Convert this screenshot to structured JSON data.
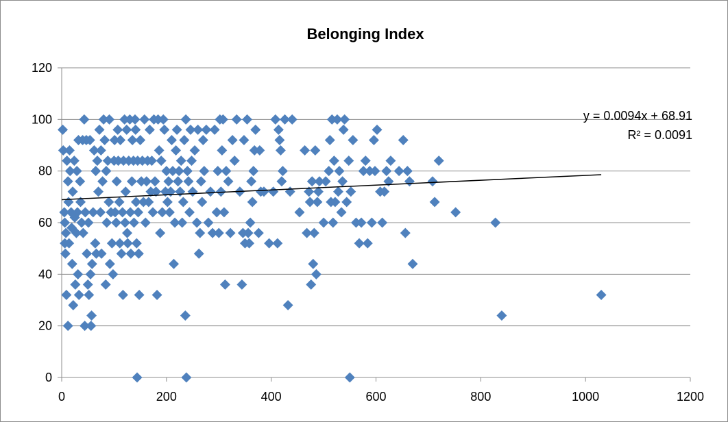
{
  "chart_data": {
    "type": "scatter",
    "title": "Belonging Index",
    "xlabel": "",
    "ylabel": "",
    "xlim": [
      0,
      1200
    ],
    "ylim": [
      0,
      120
    ],
    "x_ticks": [
      "0",
      "200",
      "400",
      "600",
      "800",
      "1000",
      "1200"
    ],
    "y_ticks": [
      "0",
      "20",
      "40",
      "60",
      "80",
      "100",
      "120"
    ],
    "grid": "horizontal",
    "legend": "none",
    "marker": "diamond",
    "marker_color": "#4F81BD",
    "trendline": {
      "type": "linear",
      "slope": 0.0094,
      "intercept": 68.91,
      "x_range": [
        0,
        1030
      ],
      "color": "#000000",
      "equation": "y = 0.0094x + 68.91",
      "r_squared": "R² = 0.0091"
    },
    "points": [
      [
        2,
        96
      ],
      [
        3,
        88
      ],
      [
        5,
        64
      ],
      [
        6,
        60
      ],
      [
        6,
        52
      ],
      [
        7,
        48
      ],
      [
        8,
        56
      ],
      [
        9,
        32
      ],
      [
        10,
        84
      ],
      [
        12,
        76
      ],
      [
        12,
        20
      ],
      [
        13,
        68
      ],
      [
        14,
        52
      ],
      [
        15,
        88
      ],
      [
        16,
        80
      ],
      [
        18,
        64
      ],
      [
        19,
        58
      ],
      [
        20,
        44
      ],
      [
        21,
        72
      ],
      [
        22,
        28
      ],
      [
        24,
        84
      ],
      [
        25,
        62
      ],
      [
        26,
        36
      ],
      [
        28,
        56
      ],
      [
        29,
        80
      ],
      [
        30,
        64
      ],
      [
        31,
        40
      ],
      [
        32,
        92
      ],
      [
        33,
        32
      ],
      [
        35,
        76
      ],
      [
        36,
        68
      ],
      [
        38,
        60
      ],
      [
        40,
        92
      ],
      [
        41,
        56
      ],
      [
        43,
        100
      ],
      [
        44,
        20
      ],
      [
        45,
        64
      ],
      [
        47,
        92
      ],
      [
        48,
        48
      ],
      [
        50,
        36
      ],
      [
        51,
        60
      ],
      [
        52,
        32
      ],
      [
        54,
        92
      ],
      [
        55,
        40
      ],
      [
        56,
        20
      ],
      [
        57,
        24
      ],
      [
        58,
        44
      ],
      [
        60,
        64
      ],
      [
        62,
        88
      ],
      [
        64,
        52
      ],
      [
        65,
        80
      ],
      [
        66,
        48
      ],
      [
        68,
        84
      ],
      [
        70,
        72
      ],
      [
        72,
        96
      ],
      [
        74,
        64
      ],
      [
        75,
        88
      ],
      [
        76,
        48
      ],
      [
        78,
        76
      ],
      [
        80,
        100
      ],
      [
        82,
        92
      ],
      [
        84,
        36
      ],
      [
        85,
        80
      ],
      [
        86,
        60
      ],
      [
        88,
        84
      ],
      [
        90,
        68
      ],
      [
        91,
        100
      ],
      [
        92,
        44
      ],
      [
        94,
        64
      ],
      [
        96,
        52
      ],
      [
        98,
        40
      ],
      [
        100,
        84
      ],
      [
        101,
        92
      ],
      [
        102,
        64
      ],
      [
        104,
        60
      ],
      [
        105,
        76
      ],
      [
        107,
        96
      ],
      [
        108,
        84
      ],
      [
        110,
        68
      ],
      [
        111,
        52
      ],
      [
        112,
        92
      ],
      [
        114,
        48
      ],
      [
        116,
        64
      ],
      [
        117,
        32
      ],
      [
        118,
        84
      ],
      [
        120,
        100
      ],
      [
        121,
        60
      ],
      [
        122,
        72
      ],
      [
        124,
        96
      ],
      [
        125,
        56
      ],
      [
        126,
        52
      ],
      [
        128,
        84
      ],
      [
        130,
        100
      ],
      [
        131,
        64
      ],
      [
        132,
        48
      ],
      [
        134,
        76
      ],
      [
        135,
        92
      ],
      [
        137,
        84
      ],
      [
        138,
        60
      ],
      [
        140,
        100
      ],
      [
        141,
        96
      ],
      [
        142,
        68
      ],
      [
        143,
        52
      ],
      [
        144,
        0
      ],
      [
        145,
        84
      ],
      [
        146,
        64
      ],
      [
        147,
        48
      ],
      [
        148,
        32
      ],
      [
        150,
        92
      ],
      [
        152,
        76
      ],
      [
        154,
        84
      ],
      [
        156,
        68
      ],
      [
        158,
        100
      ],
      [
        160,
        60
      ],
      [
        162,
        76
      ],
      [
        164,
        84
      ],
      [
        166,
        68
      ],
      [
        168,
        96
      ],
      [
        170,
        72
      ],
      [
        172,
        84
      ],
      [
        174,
        64
      ],
      [
        176,
        100
      ],
      [
        178,
        76
      ],
      [
        180,
        72
      ],
      [
        182,
        32
      ],
      [
        184,
        100
      ],
      [
        186,
        88
      ],
      [
        188,
        56
      ],
      [
        190,
        84
      ],
      [
        192,
        64
      ],
      [
        194,
        100
      ],
      [
        196,
        96
      ],
      [
        198,
        72
      ],
      [
        200,
        80
      ],
      [
        202,
        68
      ],
      [
        204,
        76
      ],
      [
        206,
        64
      ],
      [
        208,
        72
      ],
      [
        210,
        92
      ],
      [
        212,
        80
      ],
      [
        214,
        44
      ],
      [
        216,
        60
      ],
      [
        218,
        88
      ],
      [
        220,
        96
      ],
      [
        222,
        76
      ],
      [
        224,
        80
      ],
      [
        226,
        72
      ],
      [
        228,
        84
      ],
      [
        230,
        60
      ],
      [
        232,
        68
      ],
      [
        234,
        92
      ],
      [
        236,
        24
      ],
      [
        237,
        100
      ],
      [
        238,
        0
      ],
      [
        240,
        80
      ],
      [
        242,
        76
      ],
      [
        244,
        64
      ],
      [
        246,
        96
      ],
      [
        248,
        84
      ],
      [
        250,
        72
      ],
      [
        254,
        88
      ],
      [
        258,
        60
      ],
      [
        260,
        96
      ],
      [
        262,
        48
      ],
      [
        264,
        56
      ],
      [
        266,
        76
      ],
      [
        268,
        68
      ],
      [
        270,
        92
      ],
      [
        272,
        80
      ],
      [
        276,
        96
      ],
      [
        280,
        60
      ],
      [
        284,
        72
      ],
      [
        288,
        56
      ],
      [
        292,
        96
      ],
      [
        296,
        64
      ],
      [
        298,
        80
      ],
      [
        300,
        56
      ],
      [
        302,
        100
      ],
      [
        304,
        72
      ],
      [
        306,
        88
      ],
      [
        308,
        100
      ],
      [
        310,
        64
      ],
      [
        312,
        36
      ],
      [
        314,
        80
      ],
      [
        318,
        76
      ],
      [
        322,
        56
      ],
      [
        326,
        92
      ],
      [
        330,
        84
      ],
      [
        334,
        100
      ],
      [
        340,
        72
      ],
      [
        344,
        36
      ],
      [
        346,
        56
      ],
      [
        348,
        92
      ],
      [
        350,
        52
      ],
      [
        354,
        100
      ],
      [
        356,
        56
      ],
      [
        358,
        52
      ],
      [
        360,
        60
      ],
      [
        362,
        76
      ],
      [
        364,
        68
      ],
      [
        366,
        80
      ],
      [
        368,
        88
      ],
      [
        370,
        96
      ],
      [
        376,
        56
      ],
      [
        378,
        88
      ],
      [
        380,
        72
      ],
      [
        386,
        72
      ],
      [
        396,
        52
      ],
      [
        404,
        72
      ],
      [
        408,
        100
      ],
      [
        412,
        52
      ],
      [
        414,
        96
      ],
      [
        416,
        92
      ],
      [
        418,
        88
      ],
      [
        420,
        76
      ],
      [
        422,
        80
      ],
      [
        426,
        100
      ],
      [
        432,
        28
      ],
      [
        436,
        72
      ],
      [
        440,
        100
      ],
      [
        454,
        64
      ],
      [
        464,
        88
      ],
      [
        468,
        56
      ],
      [
        472,
        72
      ],
      [
        474,
        68
      ],
      [
        476,
        36
      ],
      [
        478,
        76
      ],
      [
        480,
        44
      ],
      [
        482,
        56
      ],
      [
        484,
        88
      ],
      [
        486,
        40
      ],
      [
        488,
        68
      ],
      [
        490,
        72
      ],
      [
        492,
        76
      ],
      [
        500,
        60
      ],
      [
        504,
        76
      ],
      [
        510,
        80
      ],
      [
        512,
        92
      ],
      [
        514,
        68
      ],
      [
        516,
        100
      ],
      [
        518,
        60
      ],
      [
        520,
        84
      ],
      [
        522,
        68
      ],
      [
        526,
        100
      ],
      [
        528,
        72
      ],
      [
        530,
        80
      ],
      [
        534,
        64
      ],
      [
        536,
        76
      ],
      [
        538,
        96
      ],
      [
        540,
        100
      ],
      [
        544,
        68
      ],
      [
        548,
        84
      ],
      [
        550,
        0
      ],
      [
        552,
        72
      ],
      [
        556,
        92
      ],
      [
        562,
        60
      ],
      [
        568,
        52
      ],
      [
        572,
        60
      ],
      [
        576,
        80
      ],
      [
        580,
        84
      ],
      [
        584,
        52
      ],
      [
        588,
        80
      ],
      [
        592,
        60
      ],
      [
        596,
        92
      ],
      [
        598,
        80
      ],
      [
        602,
        96
      ],
      [
        608,
        72
      ],
      [
        612,
        60
      ],
      [
        616,
        72
      ],
      [
        620,
        80
      ],
      [
        624,
        76
      ],
      [
        628,
        84
      ],
      [
        644,
        80
      ],
      [
        652,
        92
      ],
      [
        656,
        56
      ],
      [
        660,
        80
      ],
      [
        664,
        76
      ],
      [
        670,
        44
      ],
      [
        708,
        76
      ],
      [
        712,
        68
      ],
      [
        720,
        84
      ],
      [
        752,
        64
      ],
      [
        828,
        60
      ],
      [
        840,
        24
      ],
      [
        1030,
        32
      ]
    ]
  },
  "colors": {
    "marker": "#4F81BD",
    "grid": "#8C8C8C",
    "trendline": "#000000"
  }
}
